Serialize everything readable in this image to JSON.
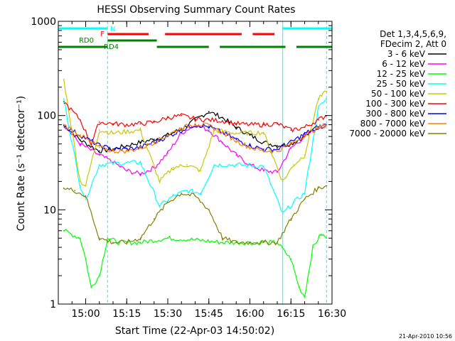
{
  "chart_data": {
    "type": "line",
    "title": "HESSI Observing Summary Count Rates",
    "xlabel": "Start Time (22-Apr-03 14:50:02)",
    "ylabel": "Count Rate (s⁻¹ detector⁻¹)",
    "ylog": true,
    "ylim": [
      1,
      1000
    ],
    "xlim": [
      "14:50",
      "16:30"
    ],
    "x_ticks": [
      "15:00",
      "15:15",
      "15:30",
      "15:45",
      "16:00",
      "16:15",
      "16:30"
    ],
    "y_ticks": [
      "1",
      "10",
      "100",
      "1000"
    ],
    "legend_header": [
      "Det 1,3,4,5,6,9,",
      "FDecim 2, Att 0"
    ],
    "series": [
      {
        "name": "3 - 6 keV",
        "color": "#000000",
        "x": [
          "14:52",
          "14:58",
          "15:05",
          "15:10",
          "15:15",
          "15:20",
          "15:25",
          "15:30",
          "15:35",
          "15:40",
          "15:45",
          "15:50",
          "15:55",
          "16:00",
          "16:05",
          "16:10",
          "16:15",
          "16:20",
          "16:25",
          "16:28"
        ],
        "y": [
          80,
          55,
          42,
          44,
          48,
          52,
          56,
          62,
          72,
          90,
          110,
          95,
          75,
          62,
          52,
          48,
          50,
          60,
          75,
          80
        ]
      },
      {
        "name": "6 - 12 keV",
        "color": "#ff00ff",
        "x": [
          "14:52",
          "14:58",
          "15:05",
          "15:10",
          "15:15",
          "15:20",
          "15:25",
          "15:30",
          "15:35",
          "15:40",
          "15:45",
          "15:50",
          "15:55",
          "16:00",
          "16:05",
          "16:10",
          "16:15",
          "16:20",
          "16:25",
          "16:28"
        ],
        "y": [
          80,
          50,
          38,
          32,
          26,
          24,
          28,
          40,
          65,
          80,
          70,
          52,
          38,
          30,
          26,
          25,
          45,
          60,
          75,
          80
        ]
      },
      {
        "name": "12 - 25 keV",
        "color": "#00ff00",
        "x": [
          "14:52",
          "14:58",
          "15:00",
          "15:02",
          "15:05",
          "15:08",
          "15:12",
          "15:20",
          "15:30",
          "15:40",
          "15:50",
          "16:00",
          "16:10",
          "16:15",
          "16:18",
          "16:20",
          "16:23",
          "16:26",
          "16:28"
        ],
        "y": [
          6,
          5,
          3,
          1.5,
          2,
          5,
          4.5,
          4.5,
          5,
          4.8,
          4.5,
          4.5,
          4.5,
          3,
          1.5,
          1.2,
          4,
          5.5,
          5
        ]
      },
      {
        "name": "25 - 50 keV",
        "color": "#00ffff",
        "x": [
          "14:52",
          "14:58",
          "15:00",
          "15:05",
          "15:10",
          "15:20",
          "15:27",
          "15:32",
          "15:37",
          "15:42",
          "15:47",
          "15:55",
          "16:05",
          "16:12",
          "16:16",
          "16:20",
          "16:25",
          "16:28"
        ],
        "y": [
          150,
          18,
          13,
          30,
          31,
          32,
          11,
          14,
          16,
          15,
          30,
          30,
          29,
          9,
          12,
          15,
          120,
          150
        ]
      },
      {
        "name": "50 - 100 keV",
        "color": "#c8c800",
        "x": [
          "14:52",
          "14:58",
          "15:00",
          "15:05",
          "15:10",
          "15:20",
          "15:27",
          "15:32",
          "15:37",
          "15:42",
          "15:47",
          "15:55",
          "16:05",
          "16:12",
          "16:16",
          "16:20",
          "16:25",
          "16:28"
        ],
        "y": [
          240,
          20,
          18,
          70,
          65,
          70,
          20,
          28,
          30,
          26,
          70,
          65,
          66,
          20,
          30,
          38,
          150,
          180
        ]
      },
      {
        "name": "100 - 300 keV",
        "color": "#ff0000",
        "x": [
          "14:52",
          "14:58",
          "15:02",
          "15:05",
          "15:10",
          "15:15",
          "15:20",
          "15:25",
          "15:30",
          "15:35",
          "15:40",
          "15:45",
          "15:50",
          "15:55",
          "16:00",
          "16:05",
          "16:10",
          "16:15",
          "16:20",
          "16:25",
          "16:28"
        ],
        "y": [
          140,
          90,
          50,
          85,
          82,
          80,
          82,
          85,
          95,
          100,
          92,
          90,
          88,
          82,
          80,
          80,
          82,
          70,
          75,
          90,
          100
        ]
      },
      {
        "name": "300 - 800 keV",
        "color": "#0000ff",
        "x": [
          "14:52",
          "14:58",
          "15:05",
          "15:10",
          "15:15",
          "15:20",
          "15:25",
          "15:30",
          "15:35",
          "15:40",
          "15:45",
          "15:50",
          "15:55",
          "16:00",
          "16:05",
          "16:10",
          "16:15",
          "16:20",
          "16:25",
          "16:28"
        ],
        "y": [
          78,
          62,
          48,
          44,
          44,
          46,
          52,
          60,
          70,
          80,
          76,
          66,
          56,
          48,
          44,
          44,
          52,
          64,
          76,
          80
        ]
      },
      {
        "name": "800 - 7000 keV",
        "color": "#ff8000",
        "x": [
          "14:52",
          "14:58",
          "15:05",
          "15:10",
          "15:15",
          "15:20",
          "15:25",
          "15:30",
          "15:35",
          "15:40",
          "15:45",
          "15:50",
          "15:55",
          "16:00",
          "16:05",
          "16:10",
          "16:15",
          "16:20",
          "16:25",
          "16:28"
        ],
        "y": [
          80,
          62,
          46,
          42,
          42,
          45,
          52,
          62,
          74,
          82,
          78,
          66,
          54,
          46,
          42,
          42,
          50,
          62,
          74,
          80
        ]
      },
      {
        "name": "7000 - 20000 keV",
        "color": "#808000",
        "x": [
          "14:52",
          "14:56",
          "15:00",
          "15:05",
          "15:10",
          "15:15",
          "15:20",
          "15:25",
          "15:30",
          "15:35",
          "15:40",
          "15:45",
          "15:50",
          "15:55",
          "16:00",
          "16:05",
          "16:10",
          "16:15",
          "16:20",
          "16:25",
          "16:28"
        ],
        "y": [
          17,
          16,
          14,
          5,
          4.5,
          4.5,
          5,
          8,
          12,
          15,
          14,
          10,
          5,
          4.5,
          4.5,
          4.5,
          4.5,
          8,
          13,
          17,
          18
        ]
      }
    ],
    "flags": [
      {
        "label": "N",
        "color": "#00ffff",
        "segments": [
          [
            "14:50",
            "15:08"
          ],
          [
            "16:12",
            "16:30"
          ]
        ]
      },
      {
        "label": "F",
        "color": "#ff0000",
        "segments": [
          [
            "15:08",
            "15:23"
          ],
          [
            "15:29",
            "15:57"
          ],
          [
            "16:01",
            "16:09"
          ]
        ]
      },
      {
        "label": "RD0",
        "color": "#008000",
        "segments": [
          [
            "15:08",
            "15:26"
          ]
        ]
      },
      {
        "label": "RD4",
        "color": "#008000",
        "segments": [
          [
            "14:50",
            "15:08"
          ],
          [
            "15:26",
            "15:45"
          ],
          [
            "15:49",
            "16:13"
          ],
          [
            "16:17",
            "16:30"
          ]
        ]
      }
    ],
    "vlines": [
      {
        "x": "15:08",
        "color": "#00ffff",
        "style": "dashed"
      },
      {
        "x": "16:12",
        "color": "#00ffff",
        "style": "solid"
      },
      {
        "x": "16:28",
        "color": "#00ffff",
        "style": "dashed"
      }
    ],
    "grid": false,
    "legend_position": "right"
  },
  "footer_timestamp": "21-Apr-2010 10:56"
}
